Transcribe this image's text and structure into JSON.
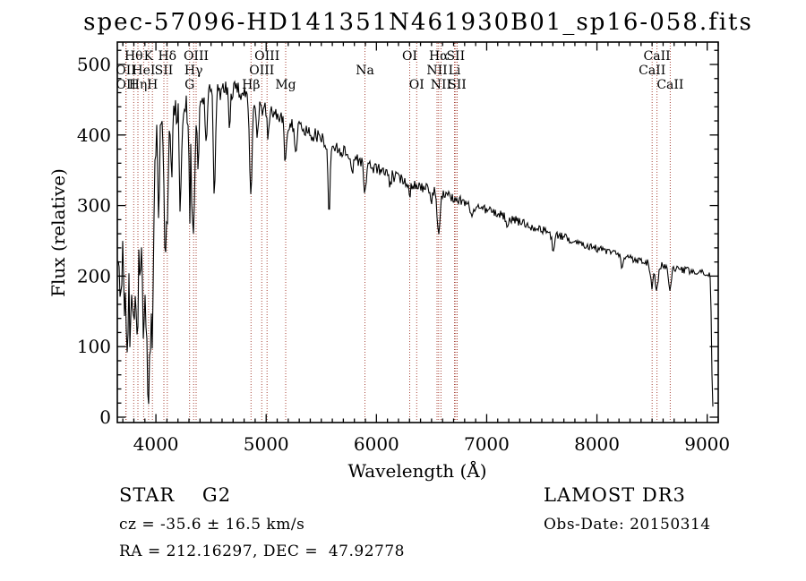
{
  "annotations": {
    "class_label": "STAR    G2",
    "survey": "LAMOST DR3",
    "cz": "cz = -35.6 ± 16.5 km/s",
    "obs_date": "Obs-Date: 20150314",
    "radec": "RA = 212.16297, DEC =  47.92778"
  },
  "colors": {
    "background": "#ffffff",
    "spectrum": "#000000",
    "axis": "#000000",
    "line_marker": "#a8463a",
    "label_text": "#000000"
  },
  "chart_data": {
    "type": "line",
    "title": "spec-57096-HD141351N461930B01_sp16-058.fits",
    "xlabel": "Wavelength (Å)",
    "ylabel": "Flux (relative)",
    "xlim": [
      3650,
      9100
    ],
    "ylim": [
      -8,
      532
    ],
    "x_ticks": [
      4000,
      5000,
      6000,
      7000,
      8000,
      9000
    ],
    "y_ticks": [
      0,
      100,
      200,
      300,
      400,
      500
    ],
    "x_minor_step": 100,
    "y_minor_step": 20,
    "grid": false,
    "legend": "none",
    "series_name": "observed flux",
    "spectral_line_markers": [
      {
        "label": "OII",
        "wavelength": 3727.1,
        "row": 2
      },
      {
        "label": "OII",
        "wavelength": 3729.9,
        "row": 3
      },
      {
        "label": "Hθ",
        "wavelength": 3799.0,
        "row": 1
      },
      {
        "label": "Hη",
        "wavelength": 3836.5,
        "row": 3
      },
      {
        "label": "HeI",
        "wavelength": 3889.0,
        "row": 2
      },
      {
        "label": "K",
        "wavelength": 3933.7,
        "row": 1
      },
      {
        "label": "H",
        "wavelength": 3968.5,
        "row": 3
      },
      {
        "label": "SII",
        "wavelength": 4072.3,
        "row": 2
      },
      {
        "label": "Hδ",
        "wavelength": 4102.9,
        "row": 1
      },
      {
        "label": "G",
        "wavelength": 4305.6,
        "row": 3
      },
      {
        "label": "Hγ",
        "wavelength": 4341.7,
        "row": 2
      },
      {
        "label": "OIII",
        "wavelength": 4364.4,
        "row": 1
      },
      {
        "label": "Hβ",
        "wavelength": 4862.7,
        "row": 3
      },
      {
        "label": "OIII",
        "wavelength": 4960.3,
        "row": 2
      },
      {
        "label": "OIII",
        "wavelength": 5008.2,
        "row": 1
      },
      {
        "label": "Mg",
        "wavelength": 5176.7,
        "row": 3
      },
      {
        "label": "Na",
        "wavelength": 5895.6,
        "row": 2
      },
      {
        "label": "OI",
        "wavelength": 6302.0,
        "row": 1
      },
      {
        "label": "OI",
        "wavelength": 6365.5,
        "row": 3
      },
      {
        "label": "NII",
        "wavelength": 6549.9,
        "row": 2
      },
      {
        "label": "Hα",
        "wavelength": 6564.6,
        "row": 1
      },
      {
        "label": "NII",
        "wavelength": 6585.3,
        "row": 3
      },
      {
        "label": "Li",
        "wavelength": 6707.9,
        "row": 2
      },
      {
        "label": "SII",
        "wavelength": 6718.3,
        "row": 1
      },
      {
        "label": "SII",
        "wavelength": 6732.7,
        "row": 3
      },
      {
        "label": "CaII",
        "wavelength": 8500.4,
        "row": 2
      },
      {
        "label": "CaII",
        "wavelength": 8544.4,
        "row": 1
      },
      {
        "label": "CaII",
        "wavelength": 8664.5,
        "row": 3
      }
    ],
    "continuum_points": [
      [
        3650,
        300
      ],
      [
        3700,
        360
      ],
      [
        3760,
        380
      ],
      [
        3850,
        395
      ],
      [
        3950,
        410
      ],
      [
        4050,
        420
      ],
      [
        4150,
        432
      ],
      [
        4250,
        442
      ],
      [
        4350,
        448
      ],
      [
        4450,
        455
      ],
      [
        4550,
        460
      ],
      [
        4650,
        465
      ],
      [
        4750,
        462
      ],
      [
        4850,
        452
      ],
      [
        4950,
        440
      ],
      [
        5050,
        432
      ],
      [
        5150,
        424
      ],
      [
        5250,
        414
      ],
      [
        5350,
        407
      ],
      [
        5450,
        399
      ],
      [
        5550,
        390
      ],
      [
        5650,
        381
      ],
      [
        5750,
        372
      ],
      [
        5850,
        364
      ],
      [
        5950,
        356
      ],
      [
        6050,
        349
      ],
      [
        6150,
        342
      ],
      [
        6250,
        336
      ],
      [
        6350,
        330
      ],
      [
        6450,
        324
      ],
      [
        6550,
        318
      ],
      [
        6650,
        313
      ],
      [
        6750,
        308
      ],
      [
        6850,
        302
      ],
      [
        6950,
        297
      ],
      [
        7100,
        288
      ],
      [
        7250,
        280
      ],
      [
        7400,
        271
      ],
      [
        7550,
        263
      ],
      [
        7700,
        255
      ],
      [
        7850,
        247
      ],
      [
        8000,
        239
      ],
      [
        8150,
        232
      ],
      [
        8300,
        226
      ],
      [
        8450,
        220
      ],
      [
        8600,
        214
      ],
      [
        8750,
        209
      ],
      [
        8900,
        205
      ],
      [
        9000,
        202
      ]
    ],
    "absorption_lines": [
      [
        3669,
        140,
        1.0
      ],
      [
        3688,
        160,
        1.0
      ],
      [
        3712,
        170,
        1.1
      ],
      [
        3734,
        220,
        1.2
      ],
      [
        3750,
        150,
        1.0
      ],
      [
        3771,
        200,
        1.2
      ],
      [
        3798,
        230,
        1.3
      ],
      [
        3820,
        110,
        1.0
      ],
      [
        3835,
        250,
        1.4
      ],
      [
        3860,
        120,
        1.0
      ],
      [
        3889,
        270,
        1.5
      ],
      [
        3910,
        100,
        1.0
      ],
      [
        3933,
        385,
        1.6
      ],
      [
        3968,
        295,
        1.5
      ],
      [
        4026,
        120,
        1.0
      ],
      [
        4077,
        100,
        1.0
      ],
      [
        4101,
        165,
        1.4
      ],
      [
        4144,
        90,
        1.0
      ],
      [
        4226,
        95,
        1.0
      ],
      [
        4305,
        95,
        1.3
      ],
      [
        4340,
        185,
        1.4
      ],
      [
        4383,
        85,
        1.0
      ],
      [
        4455,
        75,
        1.0
      ],
      [
        4531,
        150,
        1.1
      ],
      [
        4668,
        55,
        1.0
      ],
      [
        4861,
        125,
        1.4
      ],
      [
        4920,
        45,
        1.0
      ],
      [
        5015,
        40,
        1.0
      ],
      [
        5175,
        58,
        1.4
      ],
      [
        5270,
        38,
        1.1
      ],
      [
        5570,
        100,
        1.2
      ],
      [
        5780,
        25,
        1.0
      ],
      [
        5896,
        38,
        1.5
      ],
      [
        6122,
        22,
        1.0
      ],
      [
        6302,
        18,
        1.0
      ],
      [
        6494,
        20,
        1.0
      ],
      [
        6563,
        58,
        1.4
      ],
      [
        6867,
        22,
        1.4
      ],
      [
        7190,
        18,
        1.3
      ],
      [
        7605,
        22,
        1.6
      ],
      [
        8230,
        18,
        1.4
      ],
      [
        8498,
        32,
        1.5
      ],
      [
        8542,
        38,
        1.5
      ],
      [
        8662,
        34,
        1.5
      ]
    ],
    "noise_profile": [
      [
        3650,
        50
      ],
      [
        3780,
        42
      ],
      [
        3950,
        38
      ],
      [
        4100,
        26
      ],
      [
        4300,
        20
      ],
      [
        4600,
        13
      ],
      [
        5000,
        12
      ],
      [
        5500,
        10
      ],
      [
        6000,
        8.5
      ],
      [
        6500,
        7.5
      ],
      [
        7000,
        6.5
      ],
      [
        7800,
        5.5
      ],
      [
        9100,
        5.5
      ]
    ],
    "red_cutoff": {
      "wavelength": 9030,
      "drop_to": 15
    }
  }
}
